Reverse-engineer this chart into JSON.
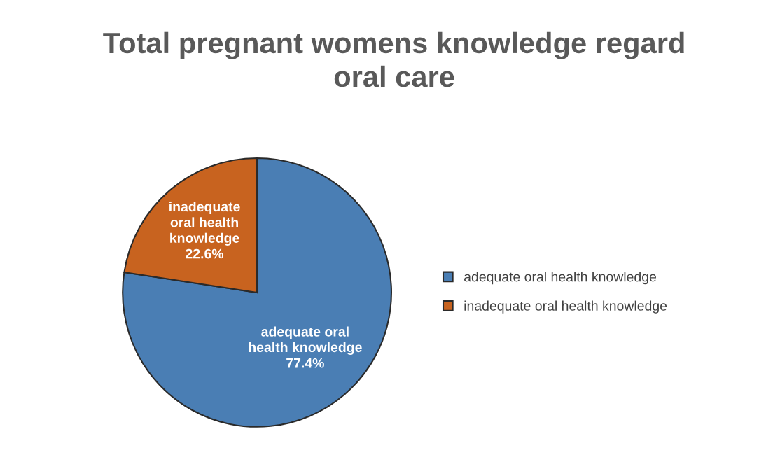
{
  "chart_data": {
    "type": "pie",
    "title": "Total pregnant womens knowledge regard\noral care",
    "categories": [
      "adequate oral health knowledge",
      "inadequate oral health knowledge"
    ],
    "values": [
      77.4,
      22.6
    ],
    "colors": [
      "#4a7eb4",
      "#c8631f"
    ],
    "value_labels": [
      "adequate oral\nhealth knowledge\n77.4%",
      "inadequate\noral health\nknowledge\n22.6%"
    ],
    "legend": "right"
  }
}
